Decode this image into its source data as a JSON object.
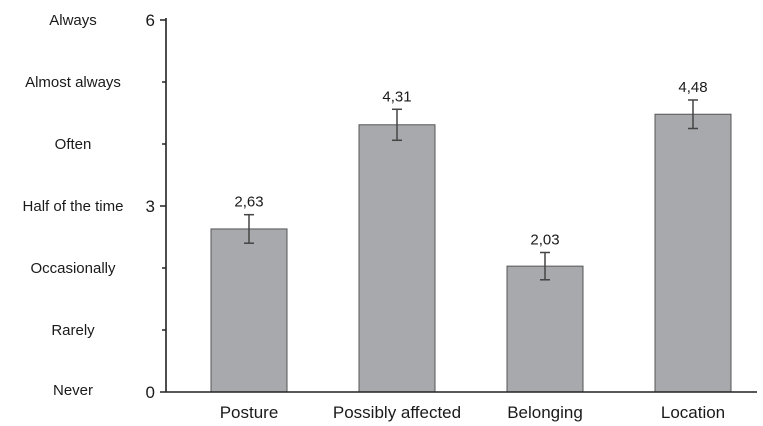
{
  "chart_data": {
    "type": "bar",
    "categories": [
      "Posture",
      "Possibly affected",
      "Belonging",
      "Location"
    ],
    "values": [
      2.63,
      4.31,
      2.03,
      4.48
    ],
    "value_labels": [
      "2,63",
      "4,31",
      "2,03",
      "4,48"
    ],
    "error": [
      0.23,
      0.25,
      0.22,
      0.23
    ],
    "ylim": [
      0,
      6
    ],
    "y_ticks": [
      {
        "value": 0,
        "label": "0"
      },
      {
        "value": 3,
        "label": "3"
      },
      {
        "value": 6,
        "label": "6"
      }
    ],
    "y_minor_ticks": [
      1,
      2,
      4,
      5
    ],
    "y_category_labels": [
      {
        "value": 6,
        "label": "Always"
      },
      {
        "value": 5,
        "label": "Almost always"
      },
      {
        "value": 4,
        "label": "Often"
      },
      {
        "value": 3,
        "label": "Half of the time"
      },
      {
        "value": 2,
        "label": "Occasionally"
      },
      {
        "value": 1,
        "label": "Rarely"
      },
      {
        "value": 0,
        "label": "Never"
      }
    ],
    "colors": {
      "bar": "#a7a9ac",
      "bar_edge": "#555555",
      "axis": "#222222"
    },
    "grid": false,
    "title": "",
    "xlabel": "",
    "ylabel": ""
  }
}
